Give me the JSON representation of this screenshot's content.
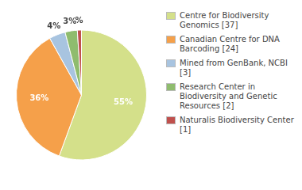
{
  "chart_data": {
    "type": "pie",
    "categories": [
      "Centre for Biodiversity\nGenomics [37]",
      "Canadian Centre for DNA\nBarcoding [24]",
      "Mined from GenBank, NCBI [3]",
      "Research Center in\nBiodiversity and Genetic\nResources [2]",
      "Naturalis Biodiversity Center [1]"
    ],
    "values": [
      55,
      36,
      4,
      3,
      1
    ],
    "value_labels": [
      "55%",
      "36%",
      "4%",
      "3%",
      "%"
    ],
    "colors": [
      "#d4e08a",
      "#f5a04a",
      "#a8c4e0",
      "#8fbc6e",
      "#c0504d"
    ],
    "data_labels": true,
    "legend": "right"
  }
}
